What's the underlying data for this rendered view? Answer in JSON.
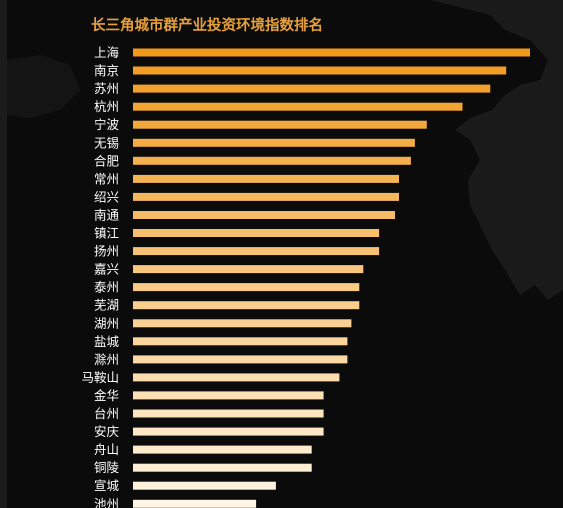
{
  "chart_data": {
    "type": "bar",
    "orientation": "horizontal",
    "title": "长三角城市群产业投资环境指数排名",
    "categories": [
      "上海",
      "南京",
      "苏州",
      "杭州",
      "宁波",
      "无锡",
      "合肥",
      "常州",
      "绍兴",
      "南通",
      "镇江",
      "扬州",
      "嘉兴",
      "泰州",
      "芜湖",
      "湖州",
      "盐城",
      "滁州",
      "马鞍山",
      "金华",
      "台州",
      "安庆",
      "舟山",
      "铜陵",
      "宣城",
      "池州"
    ],
    "values": [
      100,
      94,
      90,
      83,
      74,
      71,
      70,
      67,
      67,
      66,
      62,
      62,
      58,
      57,
      57,
      55,
      54,
      54,
      52,
      48,
      48,
      48,
      45,
      45,
      36,
      31
    ],
    "xlim": [
      0,
      100
    ],
    "grid": false,
    "legend": "none"
  },
  "colors": {
    "background": "#0b0b0b",
    "title": "#e8a13a",
    "label": "#ffffff",
    "bar_top": "#f19a1c",
    "bar_bottom": "#fff6e4"
  }
}
